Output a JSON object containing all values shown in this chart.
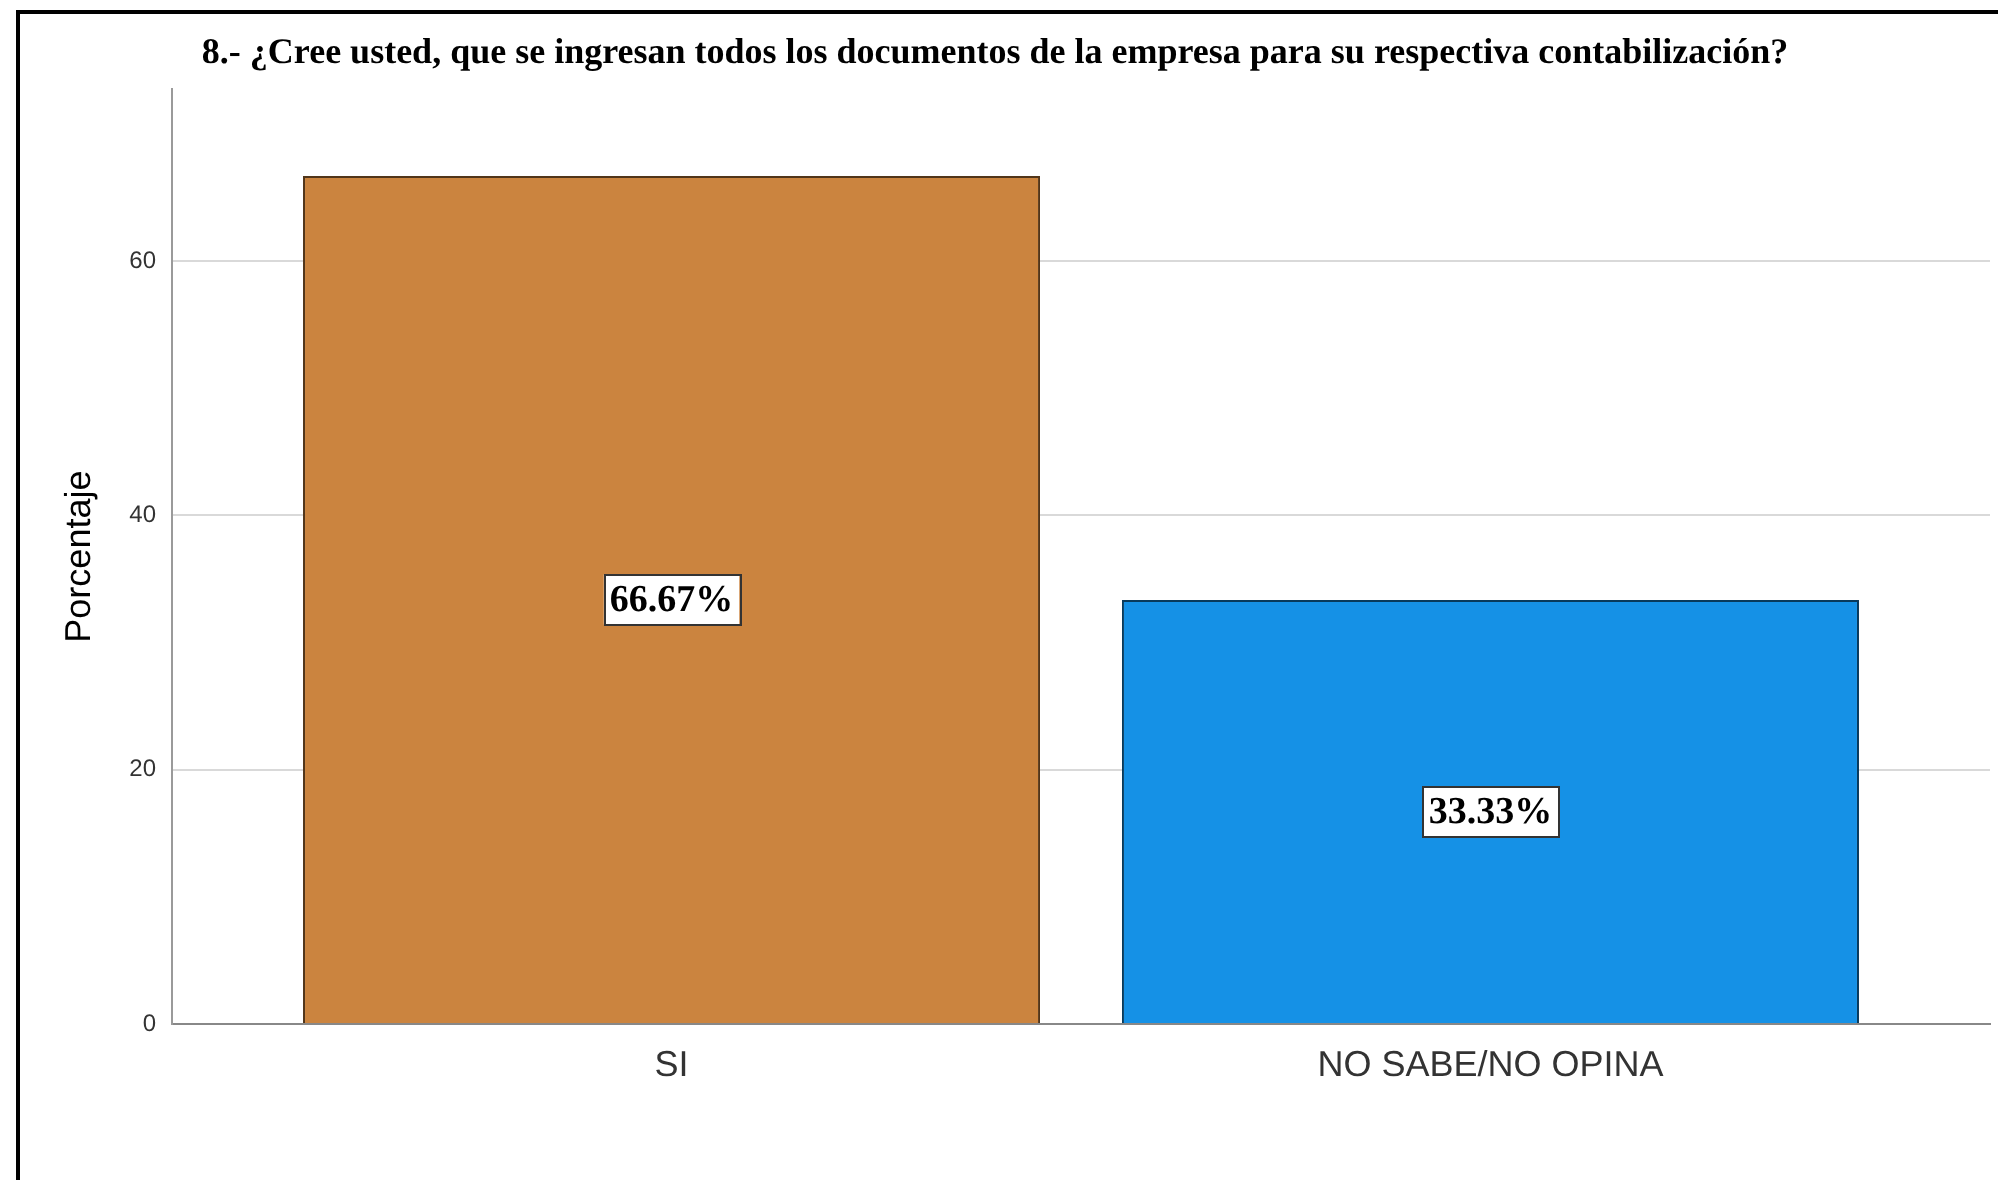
{
  "chart_data": {
    "type": "bar",
    "title": "8.- ¿Cree usted, que se ingresan todos los documentos de la empresa para su respectiva contabilización?",
    "ylabel": "Porcentaje",
    "categories": [
      "SI",
      "NO SABE/NO OPINA"
    ],
    "values": [
      66.67,
      33.33
    ],
    "colors": [
      "#cb843f",
      "#1591e6"
    ],
    "value_labels": [
      "66.67%",
      "33.33%"
    ],
    "ylim": [
      0,
      73.5
    ],
    "yticks": [
      0,
      20,
      40,
      60
    ],
    "grid": "y"
  }
}
